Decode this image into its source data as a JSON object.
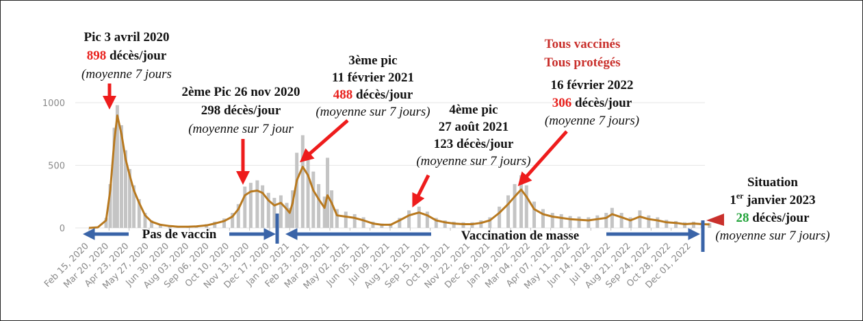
{
  "chart_data": {
    "type": "bar-line",
    "x": [
      "2020-02-15",
      "2020-03-01",
      "2020-03-15",
      "2020-03-22",
      "2020-03-29",
      "2020-04-03",
      "2020-04-10",
      "2020-04-17",
      "2020-04-24",
      "2020-05-01",
      "2020-05-10",
      "2020-05-20",
      "2020-05-31",
      "2020-06-15",
      "2020-07-01",
      "2020-07-15",
      "2020-08-01",
      "2020-08-15",
      "2020-09-01",
      "2020-09-15",
      "2020-10-01",
      "2020-10-15",
      "2020-10-25",
      "2020-11-05",
      "2020-11-15",
      "2020-11-26",
      "2020-12-05",
      "2020-12-15",
      "2020-12-25",
      "2021-01-05",
      "2021-01-15",
      "2021-01-20",
      "2021-01-25",
      "2021-02-01",
      "2021-02-11",
      "2021-02-20",
      "2021-03-01",
      "2021-03-10",
      "2021-03-20",
      "2021-03-25",
      "2021-04-01",
      "2021-04-10",
      "2021-04-25",
      "2021-05-10",
      "2021-05-25",
      "2021-06-10",
      "2021-06-25",
      "2021-07-10",
      "2021-07-25",
      "2021-08-10",
      "2021-08-27",
      "2021-09-10",
      "2021-09-25",
      "2021-10-10",
      "2021-10-25",
      "2021-11-10",
      "2021-11-25",
      "2021-12-10",
      "2021-12-25",
      "2022-01-10",
      "2022-01-25",
      "2022-02-05",
      "2022-02-16",
      "2022-02-25",
      "2022-03-10",
      "2022-03-25",
      "2022-04-10",
      "2022-04-25",
      "2022-05-10",
      "2022-05-25",
      "2022-06-10",
      "2022-06-25",
      "2022-07-10",
      "2022-07-20",
      "2022-08-05",
      "2022-08-20",
      "2022-09-05",
      "2022-09-20",
      "2022-10-05",
      "2022-10-20",
      "2022-11-05",
      "2022-11-20",
      "2022-12-05",
      "2022-12-20",
      "2023-01-01"
    ],
    "series": [
      {
        "type": "bar",
        "color": "#c4c4c4",
        "values": [
          0,
          5,
          80,
          350,
          800,
          980,
          820,
          620,
          470,
          340,
          230,
          120,
          60,
          30,
          20,
          15,
          15,
          18,
          30,
          50,
          75,
          120,
          190,
          330,
          360,
          380,
          340,
          280,
          240,
          260,
          200,
          160,
          300,
          600,
          740,
          600,
          450,
          350,
          250,
          560,
          300,
          150,
          130,
          110,
          85,
          50,
          35,
          35,
          80,
          140,
          170,
          130,
          80,
          60,
          50,
          45,
          45,
          60,
          85,
          170,
          260,
          350,
          420,
          340,
          210,
          150,
          120,
          110,
          95,
          90,
          85,
          100,
          120,
          160,
          120,
          85,
          140,
          100,
          85,
          65,
          55,
          45,
          50,
          45,
          40
        ]
      },
      {
        "type": "line",
        "color": "#b8791f",
        "values": [
          0,
          5,
          60,
          300,
          700,
          898,
          750,
          550,
          420,
          300,
          200,
          100,
          50,
          25,
          15,
          10,
          10,
          12,
          20,
          35,
          55,
          90,
          150,
          260,
          290,
          298,
          280,
          220,
          180,
          200,
          150,
          120,
          200,
          380,
          488,
          420,
          300,
          230,
          160,
          260,
          200,
          100,
          90,
          80,
          60,
          35,
          25,
          25,
          60,
          100,
          123,
          100,
          60,
          45,
          35,
          30,
          30,
          40,
          60,
          120,
          190,
          250,
          306,
          250,
          150,
          110,
          90,
          80,
          70,
          65,
          60,
          70,
          80,
          110,
          85,
          60,
          90,
          70,
          60,
          45,
          40,
          30,
          35,
          30,
          28
        ]
      }
    ],
    "ylim": [
      0,
      1100
    ],
    "yticks": [
      0,
      500,
      1000
    ],
    "grid": true,
    "xticks": [
      {
        "value": "2020-02-15",
        "label": "Feb 15, 2020"
      },
      {
        "value": "2020-03-20",
        "label": "Mar 20, 2020"
      },
      {
        "value": "2020-04-23",
        "label": "Apr 23, 2020"
      },
      {
        "value": "2020-05-27",
        "label": "May 27, 2020"
      },
      {
        "value": "2020-06-30",
        "label": "Jun 30, 2020"
      },
      {
        "value": "2020-08-03",
        "label": "Aug 03, 2020"
      },
      {
        "value": "2020-09-06",
        "label": "Sep 06, 2020"
      },
      {
        "value": "2020-10-10",
        "label": "Oct 10, 2020"
      },
      {
        "value": "2020-11-13",
        "label": "Nov 13, 2020"
      },
      {
        "value": "2020-12-17",
        "label": "Dec 17, 2020"
      },
      {
        "value": "2021-01-20",
        "label": "Jan 20, 2021"
      },
      {
        "value": "2021-02-23",
        "label": "Feb 23, 2021"
      },
      {
        "value": "2021-03-29",
        "label": "Mar 29, 2021"
      },
      {
        "value": "2021-05-02",
        "label": "May 02, 2021"
      },
      {
        "value": "2021-06-05",
        "label": "Jun 05, 2021"
      },
      {
        "value": "2021-07-09",
        "label": "Jul 09, 2021"
      },
      {
        "value": "2021-08-12",
        "label": "Aug 12, 2021"
      },
      {
        "value": "2021-09-15",
        "label": "Sep 15, 2021"
      },
      {
        "value": "2021-10-19",
        "label": "Oct 19, 2021"
      },
      {
        "value": "2021-11-22",
        "label": "Nov 22, 2021"
      },
      {
        "value": "2021-12-26",
        "label": "Dec 26, 2021"
      },
      {
        "value": "2022-01-29",
        "label": "Jan 29, 2022"
      },
      {
        "value": "2022-03-04",
        "label": "Mar 04, 2022"
      },
      {
        "value": "2022-04-07",
        "label": "Apr 07, 2022"
      },
      {
        "value": "2022-05-11",
        "label": "May 11, 2022"
      },
      {
        "value": "2022-06-14",
        "label": "Jun 14, 2022"
      },
      {
        "value": "2022-07-18",
        "label": "Jul 18, 2022"
      },
      {
        "value": "2022-08-21",
        "label": "Aug 21, 2022"
      },
      {
        "value": "2022-09-24",
        "label": "Sep 24, 2022"
      },
      {
        "value": "2022-10-28",
        "label": "Oct 28, 2022"
      },
      {
        "value": "2022-12-01",
        "label": "Dec 01, 2022"
      }
    ],
    "annotations": [
      {
        "lines": [
          [
            {
              "text": "Pic 3 avril 2020"
            }
          ],
          [
            {
              "text": "898",
              "color": "#e8201c"
            },
            {
              "text": " décès/jour"
            }
          ],
          [
            {
              "text": "(moyenne 7 jours",
              "italic": true
            }
          ]
        ]
      },
      {
        "lines": [
          [
            {
              "text": "2ème Pic 26 nov 2020"
            }
          ],
          [
            {
              "text": "298 décès/jour"
            }
          ],
          [
            {
              "text": "(moyenne sur 7 jour",
              "italic": true
            }
          ]
        ]
      },
      {
        "lines": [
          [
            {
              "text": "3ème pic"
            }
          ],
          [
            {
              "text": "11 février 2021"
            }
          ],
          [
            {
              "text": "488",
              "color": "#e8201c"
            },
            {
              "text": " décès/jour"
            }
          ],
          [
            {
              "text": "(moyenne sur 7  jours)",
              "italic": true
            }
          ]
        ]
      },
      {
        "lines": [
          [
            {
              "text": "4ème pic"
            }
          ],
          [
            {
              "text": "27 août 2021"
            }
          ],
          [
            {
              "text": "123 décès/jour"
            }
          ],
          [
            {
              "text": "(moyenne sur 7 jours)",
              "italic": true
            }
          ]
        ]
      },
      {
        "lines": [
          [
            {
              "text": "Tous vaccinés",
              "color": "#c9302c"
            }
          ],
          [
            {
              "text": "Tous protégés",
              "color": "#c9302c"
            }
          ]
        ]
      },
      {
        "lines": [
          [
            {
              "text": "16 février 2022"
            }
          ],
          [
            {
              "text": "306",
              "color": "#e8201c"
            },
            {
              "text": " décès/jour"
            }
          ],
          [
            {
              "text": "(moyenne 7 jours)",
              "italic": true
            }
          ]
        ]
      },
      {
        "lines": [
          [
            {
              "text": "Situation"
            }
          ],
          [
            {
              "text": "1"
            },
            {
              "text": "er",
              "sup": true
            },
            {
              "text": " janvier 2023"
            }
          ],
          [
            {
              "text": "28",
              "color": "#22a33a"
            },
            {
              "text": " décès/jour"
            }
          ],
          [
            {
              "text": "(moyenne sur 7  jours)",
              "italic": true
            }
          ]
        ]
      },
      {
        "lines": [
          [
            {
              "text": "Pas de vaccin"
            }
          ]
        ]
      },
      {
        "lines": [
          [
            {
              "text": "Vaccination de masse"
            }
          ]
        ]
      }
    ]
  }
}
